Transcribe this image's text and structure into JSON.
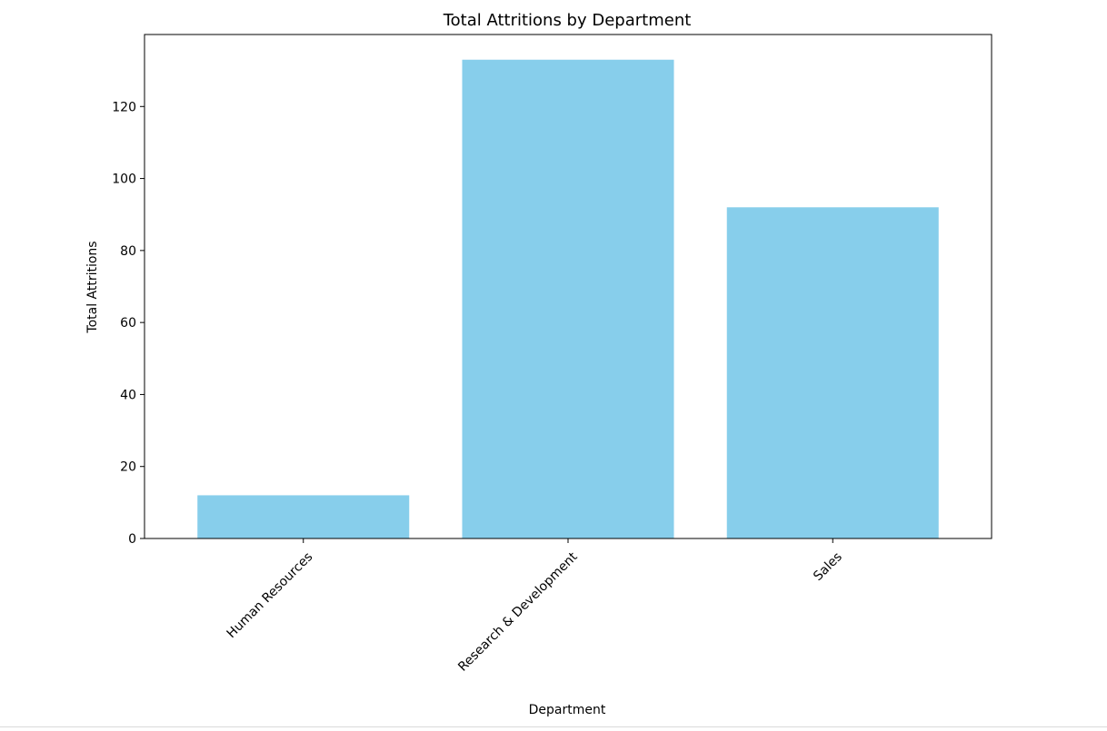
{
  "chart_data": {
    "type": "bar",
    "title": "Total Attritions by Department",
    "xlabel": "Department",
    "ylabel": "Total Attritions",
    "categories": [
      "Human Resources",
      "Research & Development",
      "Sales"
    ],
    "values": [
      12,
      133,
      92
    ],
    "ylim": [
      0,
      140
    ],
    "yticks": [
      "0",
      "20",
      "40",
      "60",
      "80",
      "100",
      "120"
    ],
    "bar_color": "#87ceeb",
    "grid": false,
    "legend": "none",
    "xtick_rotation_deg": 45
  }
}
